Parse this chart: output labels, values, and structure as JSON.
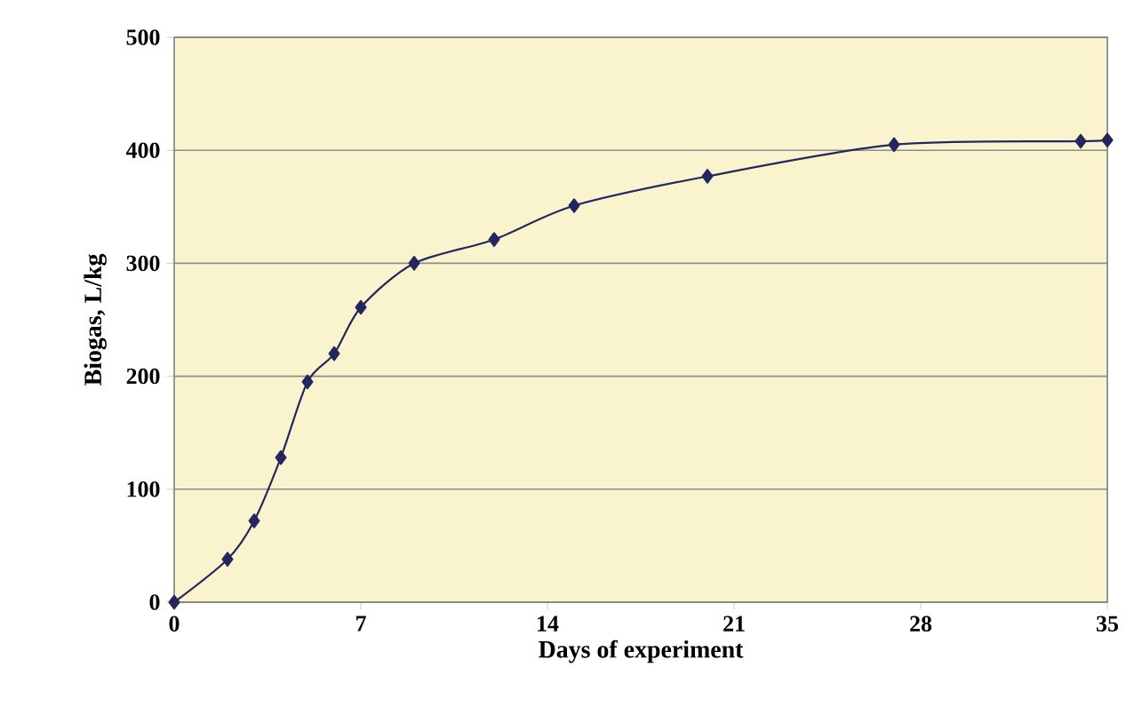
{
  "chart_data": {
    "type": "line",
    "xlabel": "Days of experiment",
    "ylabel": "Biogas, L/kg",
    "x": [
      0,
      2,
      3,
      4,
      5,
      6,
      7,
      9,
      12,
      15,
      20,
      27,
      34,
      35
    ],
    "series": [
      {
        "color": "#24265e",
        "values": [
          0,
          38,
          72,
          128,
          195,
          220,
          261,
          300,
          321,
          351,
          377,
          405,
          408,
          409
        ]
      }
    ],
    "xlim": [
      0,
      35
    ],
    "ylim": [
      0,
      500
    ],
    "xticks": [
      0,
      7,
      14,
      21,
      28,
      35
    ],
    "yticks": [
      0,
      100,
      200,
      300,
      400,
      500
    ],
    "grid": "y",
    "marker": "diamond",
    "line_style": "solid"
  }
}
